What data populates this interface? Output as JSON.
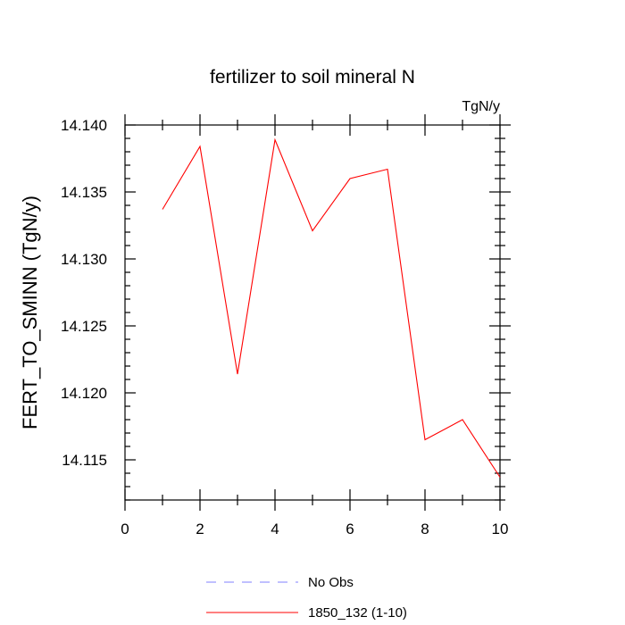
{
  "chart_data": {
    "type": "line",
    "title": "fertilizer to soil mineral N",
    "units_label": "TgN/y",
    "ylabel": "FERT_TO_SMINN  (TgN/y)",
    "xlabel": "",
    "xlim": [
      0,
      10
    ],
    "ylim": [
      14.112,
      14.14
    ],
    "x_ticks": [
      0,
      2,
      4,
      6,
      8,
      10
    ],
    "x_tick_labels": [
      "0",
      "2",
      "4",
      "6",
      "8",
      "10"
    ],
    "y_ticks": [
      14.115,
      14.12,
      14.125,
      14.13,
      14.135,
      14.14
    ],
    "y_tick_labels": [
      "14.115",
      "14.120",
      "14.125",
      "14.130",
      "14.135",
      "14.140"
    ],
    "grid": false,
    "legend_position": "bottom",
    "series": [
      {
        "name": "1850_132 (1-10)",
        "color": "#ff0000",
        "style": "solid",
        "x": [
          1,
          2,
          3,
          4,
          5,
          6,
          7,
          8,
          9,
          10
        ],
        "y": [
          14.1337,
          14.1384,
          14.1214,
          14.1389,
          14.1321,
          14.136,
          14.1367,
          14.1165,
          14.118,
          14.1137
        ]
      }
    ],
    "legend": [
      {
        "label": "No Obs",
        "color": "#8080ff",
        "style": "dashed"
      },
      {
        "label": "1850_132 (1-10)",
        "color": "#ff0000",
        "style": "solid"
      }
    ]
  }
}
